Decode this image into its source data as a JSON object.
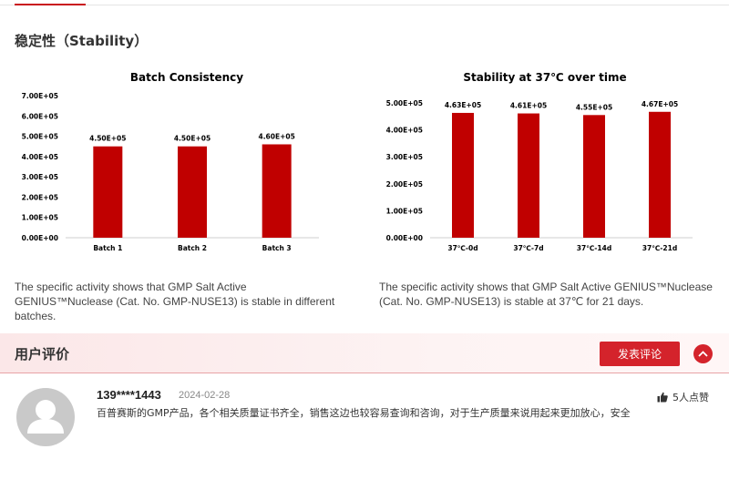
{
  "section_title": "稳定性（Stability）",
  "charts": [
    {
      "type": "bar",
      "title": "Batch Consistency",
      "categories": [
        "Batch 1",
        "Batch 2",
        "Batch 3"
      ],
      "values": [
        450000,
        450000,
        460000
      ],
      "labels": [
        "4.50E+05",
        "4.50E+05",
        "4.60E+05"
      ],
      "ylim": [
        0,
        700000
      ],
      "yticks": [
        "0.00E+00",
        "1.00E+05",
        "2.00E+05",
        "3.00E+05",
        "4.00E+05",
        "5.00E+05",
        "6.00E+05",
        "7.00E+05"
      ],
      "color": "#c00000"
    },
    {
      "type": "bar",
      "title": "Stability at 37℃ over time",
      "categories": [
        "37℃-0d",
        "37℃-7d",
        "37℃-14d",
        "37℃-21d"
      ],
      "values": [
        463000,
        461000,
        455000,
        467000
      ],
      "labels": [
        "4.63E+05",
        "4.61E+05",
        "4.55E+05",
        "4.67E+05"
      ],
      "ylim": [
        0,
        500000
      ],
      "yticks": [
        "0.00E+00",
        "1.00E+05",
        "2.00E+05",
        "3.00E+05",
        "4.00E+05",
        "5.00E+05"
      ],
      "color": "#c00000"
    }
  ],
  "chart_data": [
    {
      "type": "bar",
      "title": "Batch Consistency",
      "categories": [
        "Batch 1",
        "Batch 2",
        "Batch 3"
      ],
      "values": [
        450000,
        450000,
        460000
      ],
      "ylim": [
        0,
        700000
      ]
    },
    {
      "type": "bar",
      "title": "Stability at 37℃ over time",
      "categories": [
        "37℃-0d",
        "37℃-7d",
        "37℃-14d",
        "37℃-21d"
      ],
      "values": [
        463000,
        461000,
        455000,
        467000
      ],
      "ylim": [
        0,
        500000
      ]
    }
  ],
  "captions": [
    "The specific activity shows that GMP Salt Active GENIUS™Nuclease (Cat. No. GMP-NUSE13) is stable in different batches.",
    "The specific activity shows that GMP Salt Active GENIUS™Nuclease (Cat. No. GMP-NUSE13) is stable at 37℃ for 21 days."
  ],
  "reviews": {
    "title": "用户评价",
    "post_button": "发表评论",
    "accent": "#d4232b",
    "items": [
      {
        "user": "139****1443",
        "date": "2024-02-28",
        "text": "百普赛斯的GMP产品，各个相关质量证书齐全，销售这边也较容易查询和咨询，对于生产质量来说用起来更加放心，安全",
        "likes": "5人点赞"
      }
    ]
  }
}
